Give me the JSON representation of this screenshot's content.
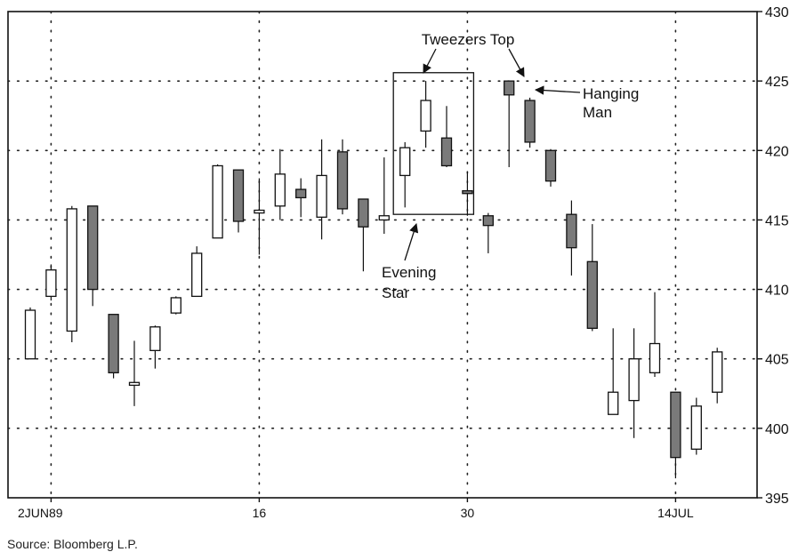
{
  "chart_data": {
    "type": "candlestick",
    "title": "",
    "xlabel": "",
    "ylabel": "",
    "ylim": [
      395,
      430
    ],
    "y_ticks": [
      395,
      400,
      405,
      410,
      415,
      420,
      425,
      430
    ],
    "x_tick_labels": [
      {
        "label": "2JUN89",
        "index": 1
      },
      {
        "label": "16",
        "index": 11
      },
      {
        "label": "30",
        "index": 21
      },
      {
        "label": "14JUL",
        "index": 31
      }
    ],
    "grid": true,
    "candles": [
      {
        "o": 405.0,
        "h": 408.7,
        "l": 405.0,
        "c": 408.5,
        "color": "white"
      },
      {
        "o": 409.5,
        "h": 411.8,
        "l": 409.2,
        "c": 411.4,
        "color": "white"
      },
      {
        "o": 407.0,
        "h": 416.0,
        "l": 406.2,
        "c": 415.8,
        "color": "white"
      },
      {
        "o": 416.0,
        "h": 416.0,
        "l": 408.8,
        "c": 410.0,
        "color": "black"
      },
      {
        "o": 408.2,
        "h": 408.2,
        "l": 403.6,
        "c": 404.0,
        "color": "black"
      },
      {
        "o": 403.3,
        "h": 406.3,
        "l": 401.6,
        "c": 403.1,
        "color": "white"
      },
      {
        "o": 405.6,
        "h": 407.4,
        "l": 404.3,
        "c": 407.3,
        "color": "white"
      },
      {
        "o": 408.3,
        "h": 409.5,
        "l": 408.2,
        "c": 409.4,
        "color": "white"
      },
      {
        "o": 409.5,
        "h": 413.1,
        "l": 409.5,
        "c": 412.6,
        "color": "white"
      },
      {
        "o": 413.7,
        "h": 419.0,
        "l": 413.7,
        "c": 418.9,
        "color": "white"
      },
      {
        "o": 418.6,
        "h": 418.6,
        "l": 414.1,
        "c": 414.9,
        "color": "black"
      },
      {
        "o": 415.5,
        "h": 418.0,
        "l": 412.5,
        "c": 415.7,
        "color": "white"
      },
      {
        "o": 416.0,
        "h": 420.1,
        "l": 415.0,
        "c": 418.3,
        "color": "white"
      },
      {
        "o": 417.2,
        "h": 418.0,
        "l": 415.2,
        "c": 416.6,
        "color": "black"
      },
      {
        "o": 415.2,
        "h": 420.8,
        "l": 413.6,
        "c": 418.2,
        "color": "white"
      },
      {
        "o": 419.9,
        "h": 420.8,
        "l": 415.4,
        "c": 415.8,
        "color": "black"
      },
      {
        "o": 416.5,
        "h": 416.5,
        "l": 411.3,
        "c": 414.5,
        "color": "black"
      },
      {
        "o": 415.0,
        "h": 419.5,
        "l": 414.0,
        "c": 415.3,
        "color": "white"
      },
      {
        "o": 418.2,
        "h": 420.6,
        "l": 415.9,
        "c": 420.2,
        "color": "white"
      },
      {
        "o": 421.4,
        "h": 425.0,
        "l": 420.2,
        "c": 423.6,
        "color": "white"
      },
      {
        "o": 420.9,
        "h": 423.2,
        "l": 418.8,
        "c": 418.9,
        "color": "black"
      },
      {
        "o": 417.1,
        "h": 418.5,
        "l": 415.3,
        "c": 416.9,
        "color": "black"
      },
      {
        "o": 415.3,
        "h": 415.5,
        "l": 412.6,
        "c": 414.6,
        "color": "black"
      },
      {
        "o": 425.0,
        "h": 425.0,
        "l": 418.8,
        "c": 424.0,
        "color": "black"
      },
      {
        "o": 423.6,
        "h": 423.8,
        "l": 420.2,
        "c": 420.6,
        "color": "black"
      },
      {
        "o": 420.0,
        "h": 420.1,
        "l": 417.4,
        "c": 417.8,
        "color": "black"
      },
      {
        "o": 415.4,
        "h": 416.4,
        "l": 411.0,
        "c": 413.0,
        "color": "black"
      },
      {
        "o": 412.0,
        "h": 414.7,
        "l": 407.0,
        "c": 407.2,
        "color": "black"
      },
      {
        "o": 401.0,
        "h": 407.2,
        "l": 401.0,
        "c": 402.6,
        "color": "white"
      },
      {
        "o": 402.0,
        "h": 407.2,
        "l": 399.3,
        "c": 405.0,
        "color": "white"
      },
      {
        "o": 404.0,
        "h": 409.8,
        "l": 403.7,
        "c": 406.1,
        "color": "white"
      },
      {
        "o": 402.6,
        "h": 402.6,
        "l": 396.4,
        "c": 397.9,
        "color": "black"
      },
      {
        "o": 398.5,
        "h": 402.2,
        "l": 398.1,
        "c": 401.6,
        "color": "white"
      },
      {
        "o": 402.6,
        "h": 405.8,
        "l": 401.8,
        "c": 405.5,
        "color": "white"
      }
    ],
    "annotations": [
      {
        "text": "Tweezers Top",
        "lines": [
          "Tweezers Top"
        ]
      },
      {
        "text": "Hanging Man",
        "lines": [
          "Hanging",
          "Man"
        ]
      },
      {
        "text": "Evening Star",
        "lines": [
          "Evening",
          "Star"
        ]
      }
    ],
    "source": "Source: Bloomberg L.P.",
    "colors": {
      "bearish_fill": "#7a7a7a",
      "bullish_fill": "#ffffff",
      "line": "#111111"
    }
  }
}
